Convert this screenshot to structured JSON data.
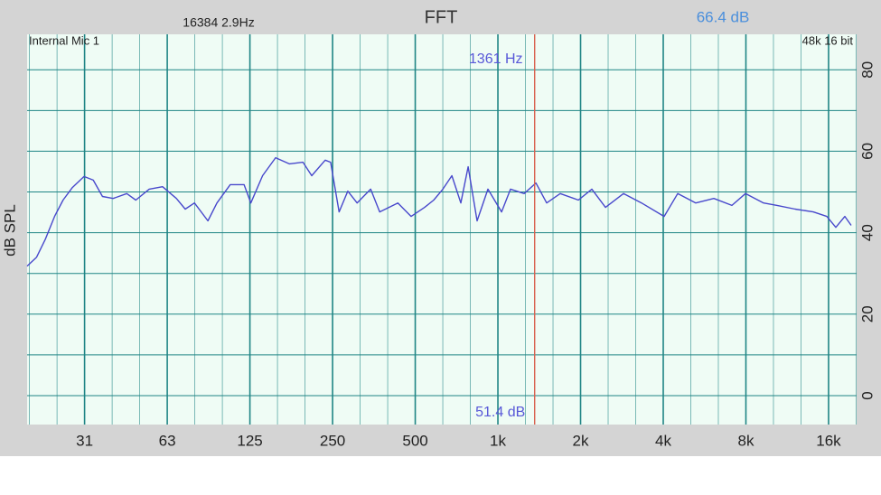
{
  "chart_data": {
    "type": "line",
    "title": "FFT",
    "header_left": "16384  2.9Hz",
    "header_right": "66.4 dB",
    "input_label": "Internal Mic 1",
    "format_label": "48k 16 bit",
    "ylabel": "dB SPL",
    "log_x": true,
    "color": "#4848cc",
    "grid_color": "#1f8585",
    "x": [
      19.3,
      20.9,
      22.5,
      24.3,
      26.1,
      28.2,
      31.1,
      33.6,
      36.3,
      39.7,
      44.5,
      48.0,
      53.7,
      60.1,
      67.5,
      72.7,
      78.5,
      87.9,
      94.8,
      106,
      119,
      126,
      139,
      155,
      174,
      195,
      210,
      235,
      246,
      264,
      284,
      307,
      344,
      371,
      432,
      483,
      541,
      584,
      630,
      680,
      733,
      779,
      840,
      920,
      1031,
      1112,
      1246,
      1375,
      1505,
      1686,
      1963,
      2199,
      2464,
      2866,
      3335,
      4031,
      4516,
      5253,
      6113,
      7114,
      7971,
      9274,
      10390,
      12090,
      14070,
      15760,
      17000,
      18340,
      19340
    ],
    "values": [
      31.8,
      34,
      38.4,
      44,
      48,
      51.1,
      53.8,
      52.9,
      48.9,
      48.4,
      49.6,
      48,
      50.7,
      51.3,
      48.4,
      45.8,
      47.3,
      42.9,
      47.3,
      51.8,
      51.8,
      47.3,
      54,
      58.4,
      56.9,
      57.3,
      54,
      57.8,
      57.3,
      45.1,
      50.2,
      47.3,
      50.7,
      45.1,
      47.3,
      44,
      46.2,
      48,
      50.7,
      54,
      47.3,
      56.2,
      42.9,
      50.7,
      45.1,
      50.7,
      49.6,
      52.2,
      47.3,
      49.6,
      48,
      50.7,
      46.2,
      49.6,
      47.3,
      44,
      49.6,
      47.3,
      48.4,
      46.7,
      49.6,
      47.3,
      46.7,
      45.8,
      45.1,
      44,
      41.3,
      44,
      41.8
    ],
    "xlim": [
      19.3,
      20240
    ],
    "xticks": [
      {
        "value": 31.25,
        "label": "31"
      },
      {
        "value": 62.5,
        "label": "63"
      },
      125,
      250,
      500,
      {
        "value": 1000,
        "label": "1k"
      },
      {
        "value": 2000,
        "label": "2k"
      },
      {
        "value": 4000,
        "label": "4k"
      },
      {
        "value": 8000,
        "label": "8k"
      },
      {
        "value": 16000,
        "label": "16k"
      }
    ],
    "ylim": [
      -7.1,
      88.7
    ],
    "yticks": [
      0,
      20,
      40,
      60,
      80
    ],
    "ygrid": [
      0,
      10,
      20,
      30,
      40,
      50,
      60,
      70,
      80
    ],
    "cursor": {
      "frequency": 1361,
      "label": "1361 Hz",
      "level": 51.4,
      "level_label": "51.4 dB",
      "color": "#d9604f",
      "label_color": "#5858d8"
    }
  }
}
